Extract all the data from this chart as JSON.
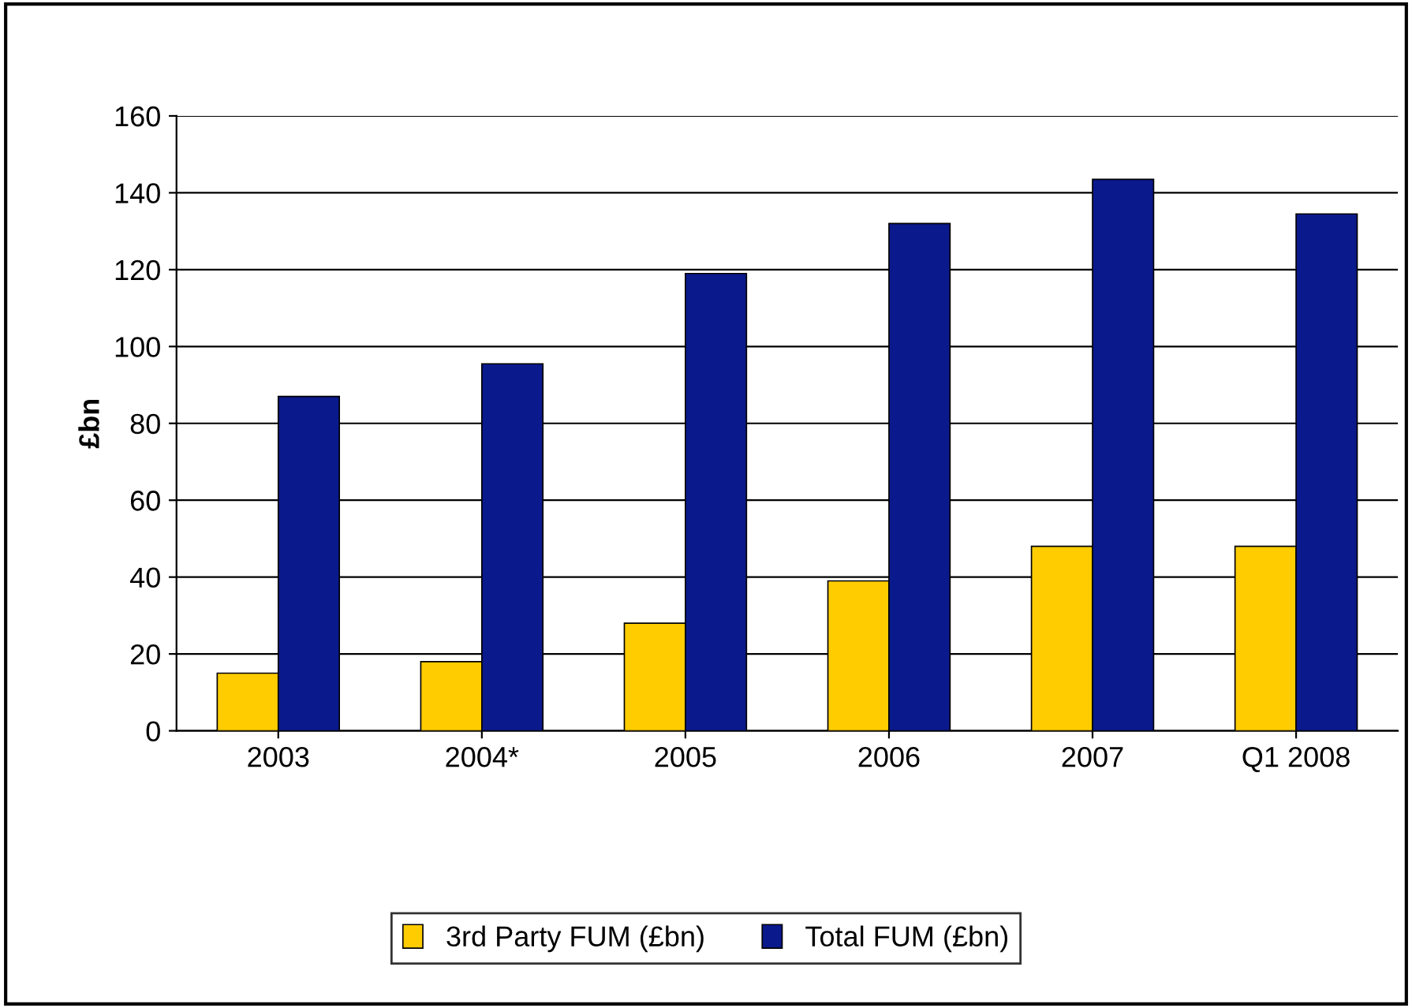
{
  "chart_data": {
    "type": "bar",
    "ylabel": "£bn",
    "categories": [
      "2003",
      "2004*",
      "2005",
      "2006",
      "2007",
      "Q1 2008"
    ],
    "series": [
      {
        "name": "3rd Party FUM (£bn)",
        "color": "#ffcc00",
        "values": [
          15,
          18,
          28,
          39,
          48,
          48
        ]
      },
      {
        "name": "Total FUM (£bn)",
        "color": "#0a1a8c",
        "values": [
          87,
          95.5,
          119,
          132,
          143.5,
          134.5
        ]
      }
    ],
    "ylim": [
      0,
      160
    ],
    "yticks": [
      0,
      20,
      40,
      60,
      80,
      100,
      120,
      140,
      160
    ],
    "grid": "y",
    "legend": "bottom"
  }
}
